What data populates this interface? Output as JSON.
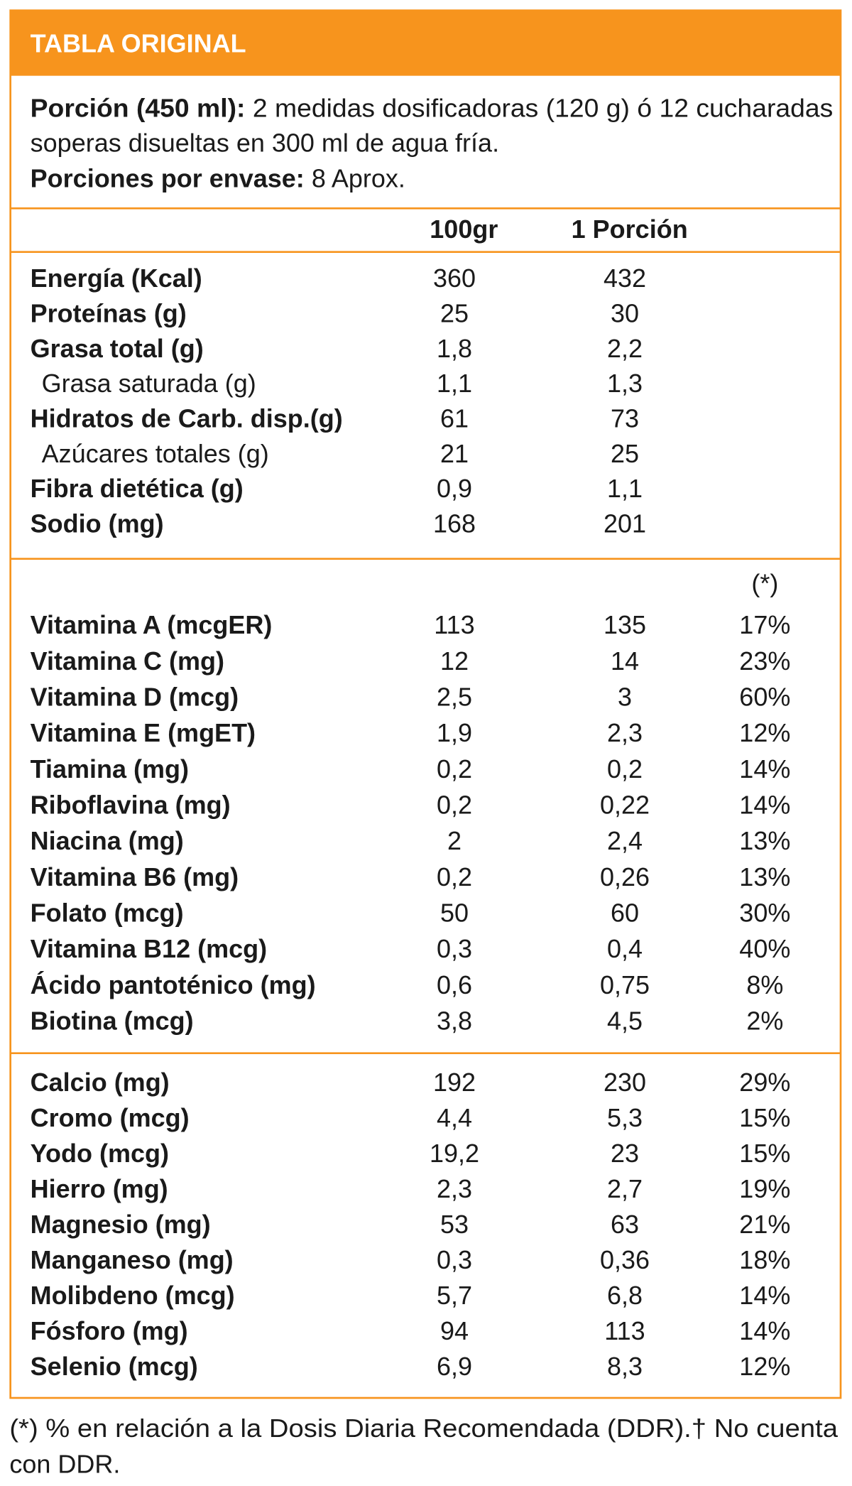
{
  "header": {
    "title": "TABLA ORIGINAL"
  },
  "portion": {
    "label": "Porción (450 ml):",
    "line1": "2 medidas dosificadoras (120 g) ó 12 cucharadas",
    "line2": "soperas disueltas en 300 ml de agua fría."
  },
  "servings": {
    "label": "Porciones por envase:",
    "text": "8 Aprox."
  },
  "columns": [
    "100gr",
    "1 Porción"
  ],
  "sections": [
    {
      "rows": [
        {
          "label": "Energía (Kcal)",
          "values": [
            "360",
            "432"
          ]
        },
        {
          "label": "Proteínas (g)",
          "values": [
            "25",
            "30"
          ]
        },
        {
          "label": "Grasa total (g)",
          "values": [
            "1,8",
            "2,2"
          ]
        },
        {
          "label": "Grasa saturada (g)",
          "values": [
            "1,1",
            "1,3"
          ],
          "indent": true
        },
        {
          "label": "Hidratos de Carb. disp.(g)",
          "values": [
            "61",
            "73"
          ]
        },
        {
          "label": "Azúcares totales (g)",
          "values": [
            "21",
            "25"
          ],
          "indent": true
        },
        {
          "label": "Fibra dietética (g)",
          "values": [
            "0,9",
            "1,1"
          ]
        },
        {
          "label": "Sodio (mg)",
          "values": [
            "168",
            "201"
          ]
        }
      ]
    },
    {
      "note": "(*)",
      "rows": [
        {
          "label": "Vitamina A (mcgER)",
          "values": [
            "113",
            "135",
            "17%"
          ]
        },
        {
          "label": "Vitamina C (mg)",
          "values": [
            "12",
            "14",
            "23%"
          ]
        },
        {
          "label": "Vitamina D (mcg)",
          "values": [
            "2,5",
            "3",
            "60%"
          ]
        },
        {
          "label": "Vitamina E (mgET)",
          "values": [
            "1,9",
            "2,3",
            "12%"
          ]
        },
        {
          "label": "Tiamina (mg)",
          "values": [
            "0,2",
            "0,2",
            "14%"
          ]
        },
        {
          "label": "Riboflavina (mg)",
          "values": [
            "0,2",
            "0,22",
            "14%"
          ]
        },
        {
          "label": "Niacina (mg)",
          "values": [
            "2",
            "2,4",
            "13%"
          ]
        },
        {
          "label": "Vitamina B6 (mg)",
          "values": [
            "0,2",
            "0,26",
            "13%"
          ]
        },
        {
          "label": "Folato (mcg)",
          "values": [
            "50",
            "60",
            "30%"
          ]
        },
        {
          "label": "Vitamina B12 (mcg)",
          "values": [
            "0,3",
            "0,4",
            "40%"
          ]
        },
        {
          "label": "Ácido pantoténico (mg)",
          "values": [
            "0,6",
            "0,75",
            "8%"
          ]
        },
        {
          "label": "Biotina (mcg)",
          "values": [
            "3,8",
            "4,5",
            "2%"
          ]
        }
      ]
    },
    {
      "rows": [
        {
          "label": "Calcio (mg)",
          "values": [
            "192",
            "230",
            "29%"
          ]
        },
        {
          "label": "Cromo (mcg)",
          "values": [
            "4,4",
            "5,3",
            "15%"
          ]
        },
        {
          "label": "Yodo (mcg)",
          "values": [
            "19,2",
            "23",
            "15%"
          ]
        },
        {
          "label": "Hierro (mg)",
          "values": [
            "2,3",
            "2,7",
            "19%"
          ]
        },
        {
          "label": "Magnesio (mg)",
          "values": [
            "53",
            "63",
            "21%"
          ]
        },
        {
          "label": "Manganeso (mg)",
          "values": [
            "0,3",
            "0,36",
            "18%"
          ]
        },
        {
          "label": "Molibdeno (mcg)",
          "values": [
            "5,7",
            "6,8",
            "14%"
          ]
        },
        {
          "label": "Fósforo (mg)",
          "values": [
            "94",
            "113",
            "14%"
          ]
        },
        {
          "label": "Selenio (mcg)",
          "values": [
            "6,9",
            "8,3",
            "12%"
          ]
        }
      ]
    }
  ],
  "footnote": [
    "(*) % en relación a la Dosis Diaria Recomendada (DDR).† No cuenta",
    "con DDR."
  ]
}
